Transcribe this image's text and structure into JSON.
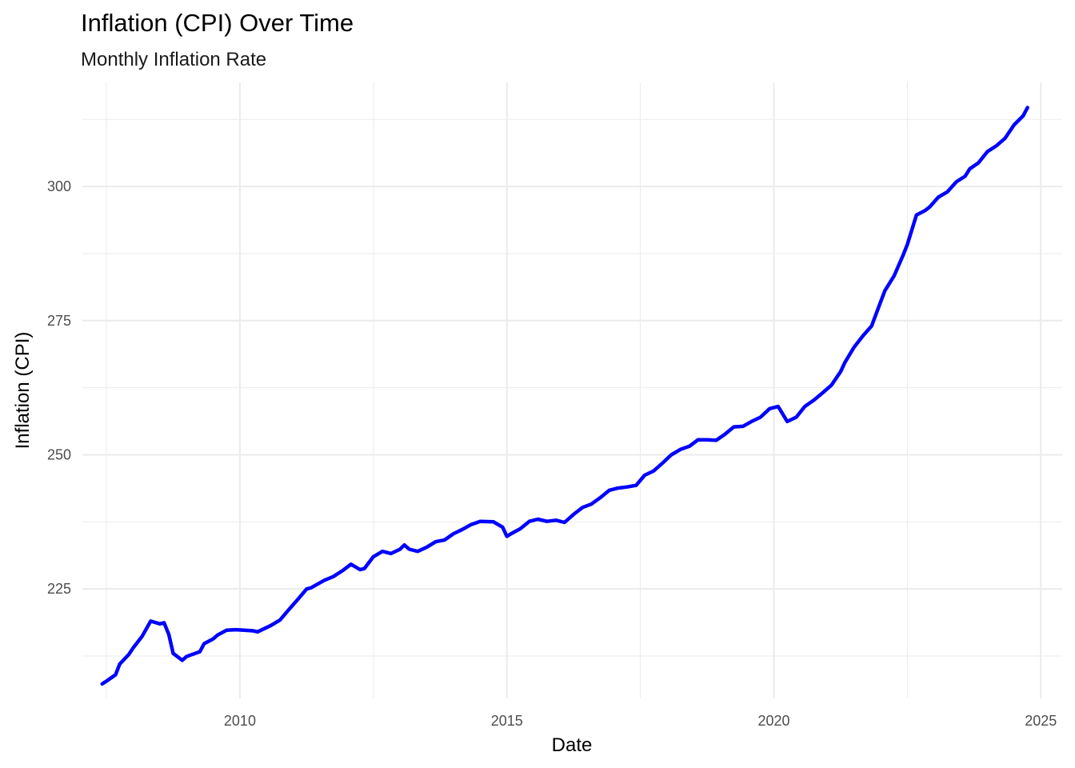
{
  "chart_data": {
    "type": "line",
    "title": "Inflation (CPI) Over Time",
    "subtitle": "Monthly Inflation Rate",
    "xlabel": "Date",
    "ylabel": "Inflation (CPI)",
    "xlim": [
      2007.05,
      2025.4
    ],
    "ylim": [
      204.6,
      319.4
    ],
    "x_ticks": [
      2010,
      2015,
      2020,
      2025
    ],
    "x_tick_labels": [
      "2010",
      "2015",
      "2020",
      "2025"
    ],
    "y_ticks": [
      225,
      250,
      275,
      300
    ],
    "y_tick_labels": [
      "225",
      "250",
      "275",
      "300"
    ],
    "grid": true,
    "legend": "none",
    "line_color": "#0000ff",
    "x": [
      2007.42,
      2007.5,
      2007.67,
      2007.75,
      2007.92,
      2008.0,
      2008.17,
      2008.33,
      2008.5,
      2008.58,
      2008.67,
      2008.75,
      2008.92,
      2009.0,
      2009.08,
      2009.25,
      2009.33,
      2009.5,
      2009.58,
      2009.75,
      2009.92,
      2010.08,
      2010.25,
      2010.33,
      2010.58,
      2010.75,
      2010.92,
      2011.08,
      2011.25,
      2011.33,
      2011.58,
      2011.75,
      2011.92,
      2012.08,
      2012.25,
      2012.33,
      2012.5,
      2012.67,
      2012.83,
      2013.0,
      2013.08,
      2013.17,
      2013.33,
      2013.5,
      2013.67,
      2013.83,
      2014.0,
      2014.17,
      2014.33,
      2014.5,
      2014.75,
      2014.92,
      2015.0,
      2015.08,
      2015.25,
      2015.42,
      2015.58,
      2015.75,
      2015.92,
      2016.08,
      2016.25,
      2016.42,
      2016.58,
      2016.75,
      2016.92,
      2017.08,
      2017.25,
      2017.42,
      2017.58,
      2017.75,
      2017.92,
      2018.08,
      2018.25,
      2018.42,
      2018.58,
      2018.75,
      2018.92,
      2019.08,
      2019.25,
      2019.42,
      2019.58,
      2019.75,
      2019.92,
      2020.08,
      2020.25,
      2020.42,
      2020.58,
      2020.75,
      2020.92,
      2021.08,
      2021.25,
      2021.33,
      2021.5,
      2021.67,
      2021.83,
      2022.0,
      2022.08,
      2022.25,
      2022.42,
      2022.5,
      2022.67,
      2022.83,
      2022.92,
      2023.08,
      2023.25,
      2023.42,
      2023.58,
      2023.67,
      2023.83,
      2024.0,
      2024.17,
      2024.33,
      2024.5,
      2024.67,
      2024.75
    ],
    "values": [
      207.3,
      207.8,
      209.0,
      211.0,
      212.8,
      214.0,
      216.2,
      219.0,
      218.5,
      218.7,
      216.5,
      213.0,
      211.7,
      212.4,
      212.7,
      213.3,
      214.8,
      215.7,
      216.4,
      217.3,
      217.4,
      217.3,
      217.2,
      217.0,
      218.2,
      219.2,
      221.2,
      223.0,
      225.0,
      225.2,
      226.6,
      227.3,
      228.4,
      229.6,
      228.6,
      228.8,
      231.0,
      232.0,
      231.6,
      232.4,
      233.2,
      232.4,
      232.0,
      232.8,
      233.8,
      234.1,
      235.3,
      236.1,
      237.0,
      237.6,
      237.5,
      236.5,
      234.8,
      235.3,
      236.2,
      237.6,
      238.0,
      237.6,
      237.8,
      237.4,
      238.9,
      240.2,
      240.8,
      242.0,
      243.4,
      243.8,
      244.0,
      244.3,
      246.2,
      247.0,
      248.5,
      250.0,
      251.0,
      251.6,
      252.8,
      252.8,
      252.7,
      253.8,
      255.2,
      255.3,
      256.2,
      257.0,
      258.6,
      259.0,
      256.2,
      257.0,
      259.0,
      260.2,
      261.6,
      263.0,
      265.5,
      267.2,
      270.0,
      272.2,
      274.0,
      278.5,
      280.6,
      283.3,
      287.2,
      289.2,
      294.7,
      295.5,
      296.2,
      298.0,
      299.0,
      300.9,
      301.9,
      303.3,
      304.4,
      306.5,
      307.6,
      309.0,
      311.5,
      313.2,
      314.7
    ]
  }
}
